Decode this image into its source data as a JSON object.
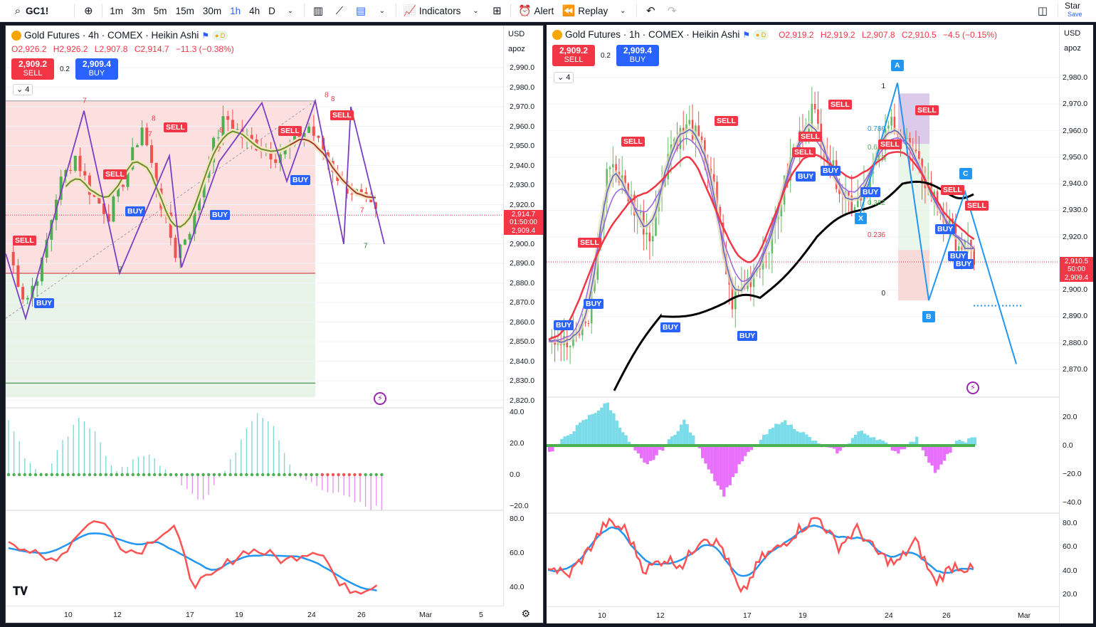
{
  "toolbar": {
    "symbol": "GC1!",
    "intervals": [
      "1m",
      "3m",
      "5m",
      "15m",
      "30m",
      "1h",
      "4h",
      "D"
    ],
    "active_interval": "1h",
    "indicators_label": "Indicators",
    "alert_label": "Alert",
    "replay_label": "Replay",
    "star_label": "Star",
    "save_label": "Save"
  },
  "left": {
    "title": "Gold Futures · 4h · COMEX · Heikin Ashi",
    "ohlc": {
      "o": "O2,926.2",
      "h": "H2,926.2",
      "l": "L2,907.8",
      "c": "C2,914.7",
      "chg": "−11.3 (−0.38%)"
    },
    "sell": {
      "price": "2,909.2",
      "label": "SELL"
    },
    "buy": {
      "price": "2,909.4",
      "label": "BUY"
    },
    "spread": "0.2",
    "collapse": "4",
    "currency": "USD",
    "unit": "apoz",
    "price_ticks": [
      "2,990.0",
      "2,980.0",
      "2,970.0",
      "2,960.0",
      "2,950.0",
      "2,940.0",
      "2,930.0",
      "2,920.0",
      "2,910.0",
      "2,900.0",
      "2,890.0",
      "2,880.0",
      "2,870.0",
      "2,860.0",
      "2,850.0",
      "2,840.0",
      "2,830.0",
      "2,820.0"
    ],
    "osc_ticks": [
      "40.0",
      "20.0",
      "0.0",
      "−20.0"
    ],
    "rsi_ticks": [
      "80.0",
      "60.0",
      "40.0"
    ],
    "price_tag": {
      "price": "2,914.7",
      "time": "01:50:00",
      "buy": "2,909.4"
    },
    "x_ticks": [
      "10",
      "12",
      "17",
      "19",
      "24",
      "26",
      "Mar",
      "5"
    ],
    "signals": [
      {
        "t": "SELL",
        "kind": "sell"
      },
      {
        "t": "BUY",
        "kind": "buy"
      },
      {
        "t": "SELL",
        "kind": "sell"
      },
      {
        "t": "BUY",
        "kind": "buy"
      },
      {
        "t": "SELL",
        "kind": "sell"
      },
      {
        "t": "BUY",
        "kind": "buy"
      },
      {
        "t": "SELL",
        "kind": "sell"
      },
      {
        "t": "BUY",
        "kind": "buy"
      },
      {
        "t": "SELL",
        "kind": "sell"
      }
    ],
    "counts": [
      "7",
      "8",
      "7",
      "8",
      "7",
      "7",
      "8",
      "7",
      "7",
      "8"
    ],
    "logo": "TV"
  },
  "right": {
    "title": "Gold Futures · 1h · COMEX · Heikin Ashi",
    "ohlc": {
      "o": "O2,919.2",
      "h": "H2,919.2",
      "l": "L2,907.8",
      "c": "C2,910.5",
      "chg": "−4.5 (−0.15%)"
    },
    "sell": {
      "price": "2,909.2",
      "label": "SELL"
    },
    "buy": {
      "price": "2,909.4",
      "label": "BUY"
    },
    "spread": "0.2",
    "collapse": "4",
    "currency": "USD",
    "unit": "apoz",
    "price_ticks": [
      "2,980.0",
      "2,970.0",
      "2,960.0",
      "2,950.0",
      "2,940.0",
      "2,930.0",
      "2,920.0",
      "2,910.0",
      "2,900.0",
      "2,890.0",
      "2,880.0",
      "2,870.0"
    ],
    "osc_ticks": [
      "20.0",
      "0.0",
      "−20.0",
      "−40.0"
    ],
    "rsi_ticks": [
      "80.0",
      "60.0",
      "40.0",
      "20.0"
    ],
    "price_tag": {
      "price": "2,910.5",
      "time": "50:00",
      "buy": "2,909.4"
    },
    "x_ticks": [
      "10",
      "12",
      "17",
      "19",
      "24",
      "26",
      "Mar"
    ],
    "fib_levels": [
      "1",
      "0.786",
      "0.618",
      "0.5",
      "0.382",
      "0.236",
      "0"
    ],
    "xabcd": [
      "X",
      "A",
      "B",
      "C"
    ],
    "signals": [
      {
        "t": "BUY",
        "kind": "buy"
      },
      {
        "t": "BUY",
        "kind": "buy"
      },
      {
        "t": "SELL",
        "kind": "sell"
      },
      {
        "t": "SELL",
        "kind": "sell"
      },
      {
        "t": "BUY",
        "kind": "buy"
      },
      {
        "t": "SELL",
        "kind": "sell"
      },
      {
        "t": "BUY",
        "kind": "buy"
      },
      {
        "t": "SELL",
        "kind": "sell"
      },
      {
        "t": "SELL",
        "kind": "sell"
      },
      {
        "t": "BUY",
        "kind": "buy"
      },
      {
        "t": "BUY",
        "kind": "buy"
      },
      {
        "t": "SELL",
        "kind": "sell"
      },
      {
        "t": "SELL",
        "kind": "sell"
      },
      {
        "t": "BUY",
        "kind": "buy"
      },
      {
        "t": "SELL",
        "kind": "sell"
      },
      {
        "t": "SELL",
        "kind": "sell"
      },
      {
        "t": "SELL",
        "kind": "sell"
      },
      {
        "t": "BUY",
        "kind": "buy"
      },
      {
        "t": "BUY",
        "kind": "buy"
      },
      {
        "t": "BUY",
        "kind": "buy"
      }
    ]
  },
  "colors": {
    "up": "#26a69a",
    "down": "#ef5350",
    "sell": "#f23645",
    "buy": "#2962ff",
    "accent": "#2962ff"
  }
}
